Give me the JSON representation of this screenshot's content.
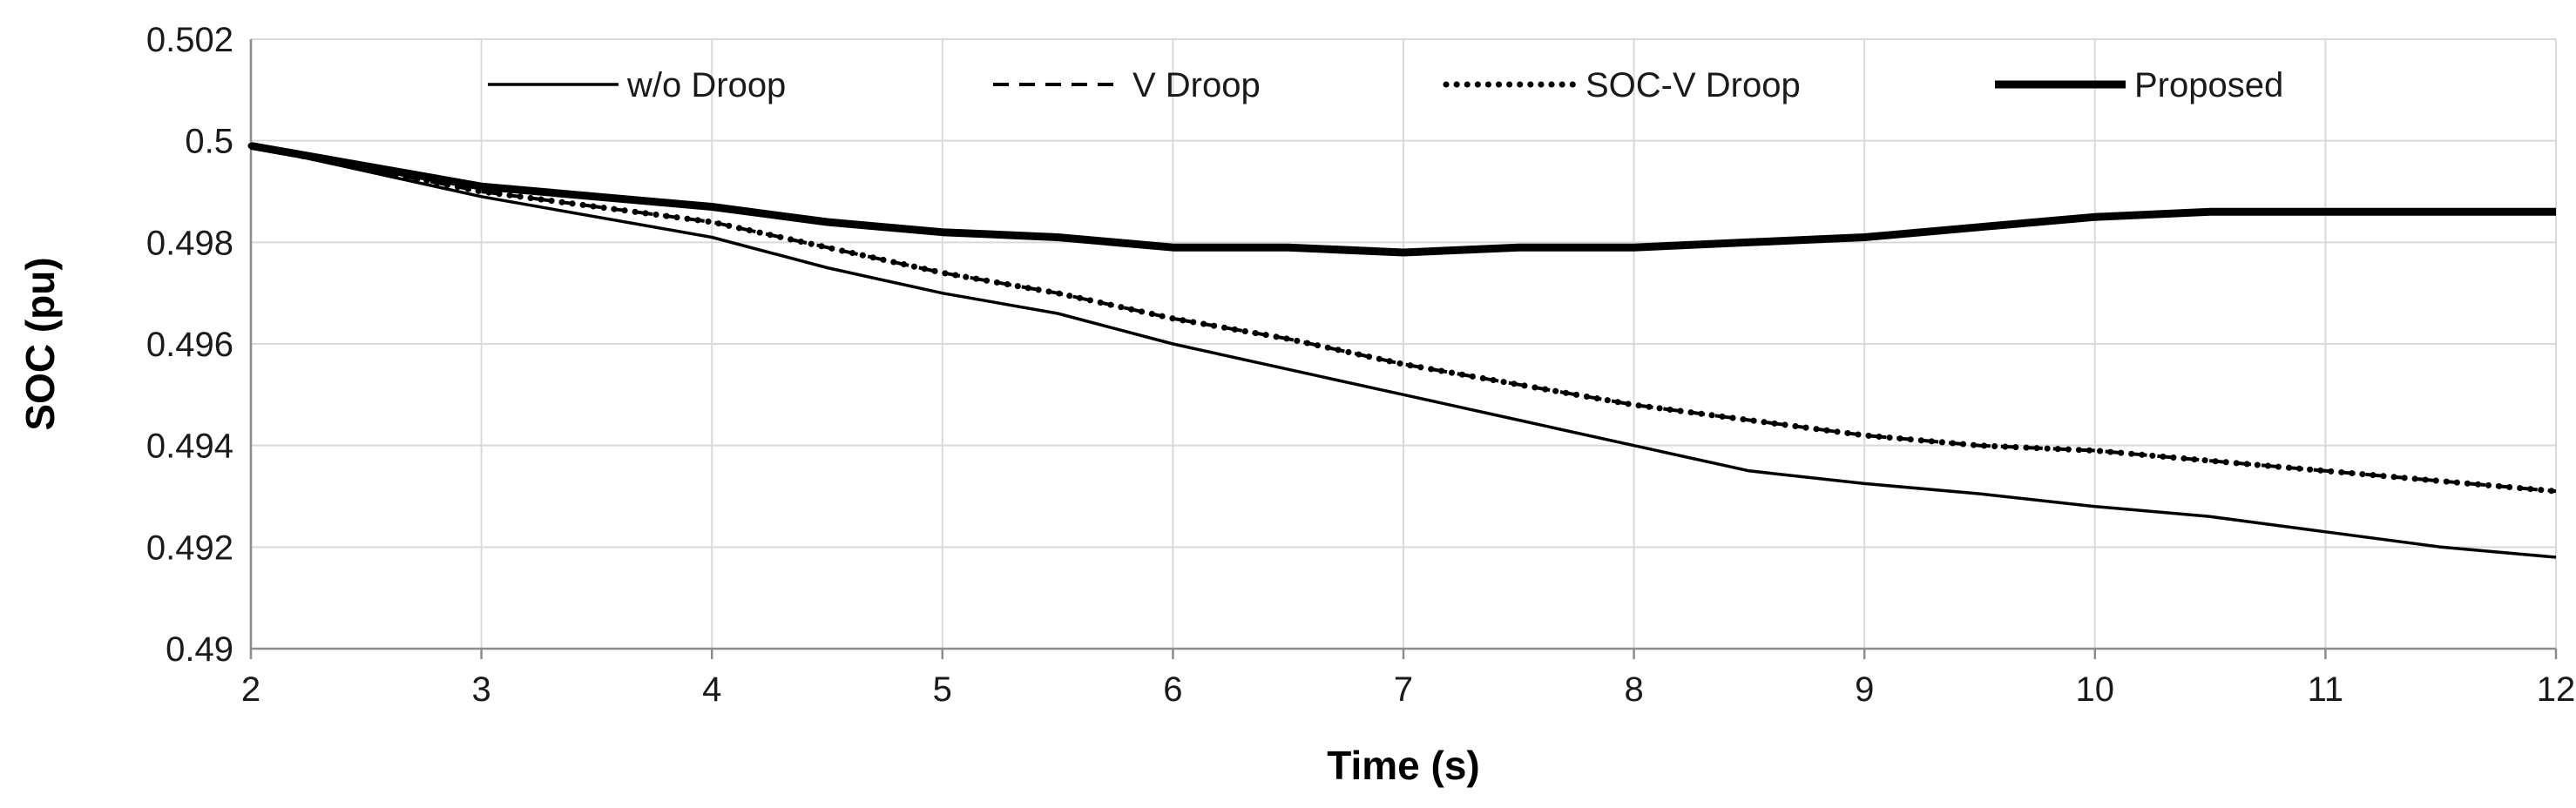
{
  "chart_data": {
    "type": "line",
    "title": "",
    "xlabel": "Time (s)",
    "ylabel": "SOC (pu)",
    "xlim": [
      2,
      12
    ],
    "ylim": [
      0.49,
      0.502
    ],
    "xticks": [
      2,
      3,
      4,
      5,
      6,
      7,
      8,
      9,
      10,
      11,
      12
    ],
    "yticks": [
      0.49,
      0.492,
      0.494,
      0.496,
      0.498,
      0.5,
      0.502
    ],
    "xtick_labels": [
      "2",
      "3",
      "4",
      "5",
      "6",
      "7",
      "8",
      "9",
      "10",
      "11",
      "12"
    ],
    "ytick_labels": [
      "0.49",
      "0.492",
      "0.494",
      "0.496",
      "0.498",
      "0.5",
      "0.502"
    ],
    "grid": true,
    "legend_position": "top",
    "x": [
      2,
      3,
      4,
      4.5,
      5,
      5.5,
      6,
      6.5,
      7,
      7.5,
      8,
      8.5,
      9,
      9.5,
      10,
      10.5,
      11,
      11.5,
      12
    ],
    "series": [
      {
        "name": "w/o Droop",
        "style": "thin-solid",
        "values": [
          0.4999,
          0.4989,
          0.4981,
          0.4975,
          0.497,
          0.4966,
          0.496,
          0.4955,
          0.495,
          0.4945,
          0.494,
          0.4935,
          0.49325,
          0.49305,
          0.4928,
          0.4926,
          0.4923,
          0.492,
          0.4918
        ]
      },
      {
        "name": "V Droop",
        "style": "dashed",
        "values": [
          0.4999,
          0.499,
          0.4984,
          0.4979,
          0.4974,
          0.497,
          0.4965,
          0.4961,
          0.4956,
          0.4952,
          0.4948,
          0.4945,
          0.4942,
          0.494,
          0.4939,
          0.4937,
          0.4935,
          0.4933,
          0.4931
        ]
      },
      {
        "name": "SOC-V Droop",
        "style": "dotted",
        "values": [
          0.4999,
          0.499,
          0.4984,
          0.4979,
          0.4974,
          0.497,
          0.4965,
          0.4961,
          0.4956,
          0.4952,
          0.4948,
          0.4945,
          0.4942,
          0.494,
          0.4939,
          0.4937,
          0.4935,
          0.4933,
          0.4931
        ]
      },
      {
        "name": "Proposed",
        "style": "thick-solid",
        "values": [
          0.4999,
          0.4991,
          0.4987,
          0.4984,
          0.4982,
          0.4981,
          0.4979,
          0.4979,
          0.4978,
          0.4979,
          0.4979,
          0.498,
          0.4981,
          0.4983,
          0.4985,
          0.4986,
          0.4986,
          0.4986,
          0.4986
        ]
      }
    ]
  },
  "colors": {
    "line": "#000000",
    "grid": "#d9d9d9",
    "axis": "#8c8c8c"
  }
}
